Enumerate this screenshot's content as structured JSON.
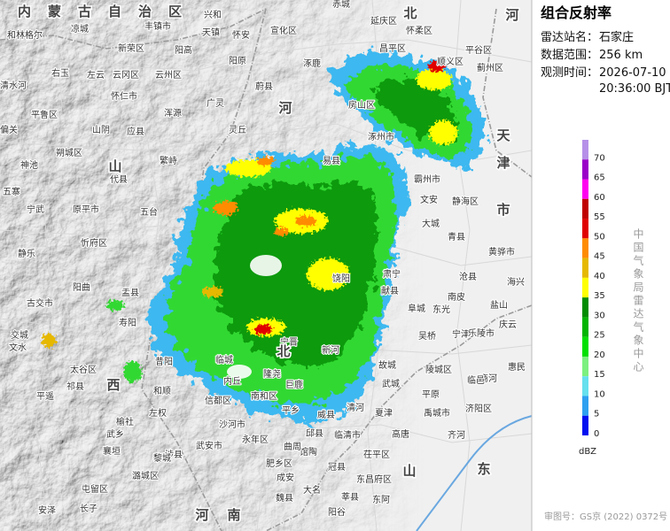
{
  "panel": {
    "title": "组合反射率",
    "station_label": "雷达站名：",
    "station": "石家庄",
    "range_label": "数据范围：",
    "range": "256 km",
    "time_label": "观测时间：",
    "date": "2026-07-10",
    "time": "20:36:00 BJT",
    "legend": {
      "levels": [
        {
          "value": 70,
          "color": "#b690e8"
        },
        {
          "value": 65,
          "color": "#9a00c8"
        },
        {
          "value": 60,
          "color": "#ff00f0"
        },
        {
          "value": 55,
          "color": "#c00000"
        },
        {
          "value": 50,
          "color": "#e00000"
        },
        {
          "value": 45,
          "color": "#ff8c00"
        },
        {
          "value": 40,
          "color": "#e6b800"
        },
        {
          "value": 35,
          "color": "#ffff00"
        },
        {
          "value": 30,
          "color": "#008c00"
        },
        {
          "value": 25,
          "color": "#00b400"
        },
        {
          "value": 20,
          "color": "#00e000"
        },
        {
          "value": 15,
          "color": "#7cf080"
        },
        {
          "value": 10,
          "color": "#66e0ee"
        },
        {
          "value": 5,
          "color": "#2ea0f0"
        },
        {
          "value": 0,
          "color": "#0010f0"
        }
      ],
      "unit": "dBZ"
    },
    "credit": "中国气象局雷达气象中心",
    "approval": "审图号：GS京 (2022) 0372号"
  },
  "map": {
    "regions": [
      "内蒙古自治区",
      "山",
      "西",
      "河",
      "北",
      "天",
      "津",
      "市",
      "山",
      "东",
      "河",
      "南",
      "北",
      "河"
    ],
    "places": [
      "和林格尔",
      "凉城",
      "丰镇市",
      "兴和",
      "天镇",
      "怀安",
      "宣化区",
      "赤城",
      "延庆区",
      "怀柔区",
      "昌平区",
      "平谷区",
      "顺义区",
      "蓟州区",
      "新荣区",
      "阳高",
      "阳原",
      "涿鹿",
      "右玉",
      "左云",
      "云冈区",
      "云州区",
      "怀仁市",
      "蔚县",
      "广灵",
      "房山区",
      "涿州市",
      "清水河",
      "平鲁区",
      "山阴",
      "应县",
      "浑源",
      "灵丘",
      "偏关",
      "神池",
      "朔城区",
      "繁峙",
      "代县",
      "五寨",
      "宁武",
      "原平市",
      "五台",
      "易县",
      "霸州市",
      "文安",
      "静海区",
      "大城",
      "青县",
      "黄骅市",
      "沧县",
      "海兴",
      "盐山",
      "南皮",
      "东光",
      "阜城",
      "肃宁",
      "献县",
      "吴桥",
      "宁津",
      "乐陵市",
      "庆云",
      "惠民",
      "商河",
      "临邑",
      "陵城区",
      "故城",
      "武城",
      "平原",
      "夏津",
      "禹城市",
      "济阳区",
      "齐河",
      "高唐",
      "临清市",
      "茌平区",
      "馆陶",
      "冠县",
      "东昌府区",
      "东阿",
      "莘县",
      "大名",
      "阳谷",
      "魏县",
      "成安",
      "肥乡区",
      "曲周",
      "邱县",
      "永年区",
      "沙河市",
      "武安市",
      "涉县",
      "左权",
      "和顺",
      "昔阳",
      "榆社",
      "武乡",
      "黎城",
      "襄垣",
      "潞城区",
      "屯留区",
      "长子",
      "安泽",
      "平遥",
      "祁县",
      "太谷区",
      "文水",
      "交城",
      "阳曲",
      "盂县",
      "寿阳",
      "忻府区",
      "静乐",
      "古交市",
      "宁晋",
      "新河",
      "隆尧",
      "巨鹿",
      "临城",
      "内丘",
      "信都区",
      "南和区",
      "平乡",
      "威县",
      "清河",
      "饶阳"
    ]
  }
}
